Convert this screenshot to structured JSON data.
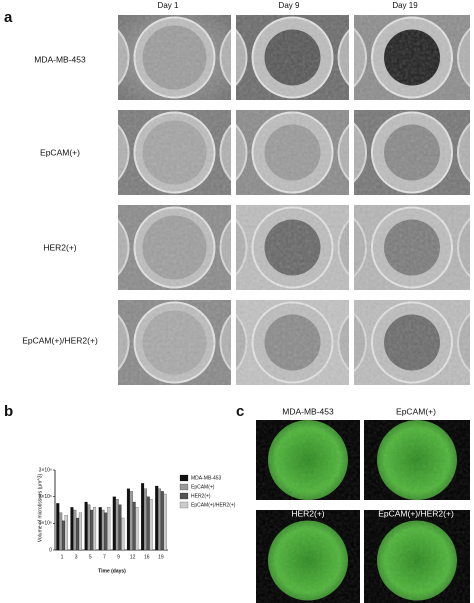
{
  "panel_labels": [
    "a",
    "b",
    "c"
  ],
  "panel_a": {
    "columns": [
      "Day 1",
      "Day 9",
      "Day 19"
    ],
    "rows": [
      "MDA-MB-453",
      "EpCAM(+)",
      "HER2(+)",
      "EpCAM(+)/HER2(+)"
    ]
  },
  "chart_data": {
    "type": "bar",
    "y_label": "Volume of microtissues (µm^3)",
    "x_label": "Time (days)",
    "categories": [
      "1",
      "3",
      "5",
      "7",
      "9",
      "12",
      "16",
      "19"
    ],
    "series": [
      {
        "name": "MDA-MB-453",
        "color": "#111111",
        "values": [
          1750000,
          1600000,
          1800000,
          1600000,
          2000000,
          2300000,
          2500000,
          2400000
        ]
      },
      {
        "name": "EpCAM(+)",
        "color": "#9a9a9a",
        "values": [
          1400000,
          1500000,
          1700000,
          1500000,
          1900000,
          2200000,
          2300000,
          2300000
        ]
      },
      {
        "name": "HER2(+)",
        "color": "#555555",
        "values": [
          1100000,
          1200000,
          1500000,
          1400000,
          1700000,
          1800000,
          2000000,
          2200000
        ]
      },
      {
        "name": "EpCAM(+)/HER2(+)",
        "color": "#cccccc",
        "values": [
          1300000,
          1400000,
          1600000,
          1600000,
          1200000,
          1600000,
          1900000,
          2100000
        ]
      }
    ],
    "ylim": [
      0,
      3000000
    ],
    "yticks": [
      0,
      {
        "value": 1000000,
        "label": "1×10⁶"
      },
      {
        "value": 2000000,
        "label": "2×10⁶"
      },
      {
        "value": 3000000,
        "label": "3×10⁶"
      }
    ]
  },
  "panel_c": {
    "labels": [
      "MDA-MB-453",
      "EpCAM(+)",
      "HER2(+)",
      "EpCAM(+)/HER2(+)"
    ]
  }
}
